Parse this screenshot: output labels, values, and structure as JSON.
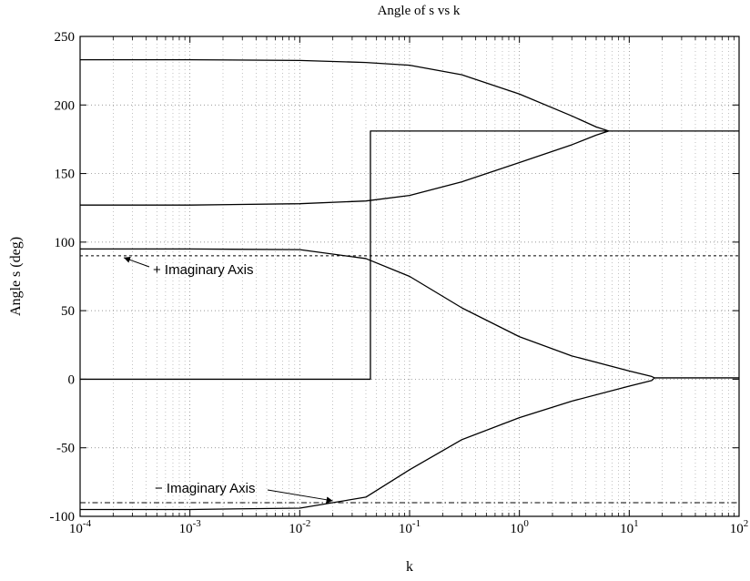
{
  "chart_data": {
    "type": "line",
    "title": "Angle of s vs k",
    "xlabel": "k",
    "ylabel": "Angle s (deg)",
    "xscale": "log",
    "xlim": [
      0.0001,
      100
    ],
    "ylim": [
      -100,
      250
    ],
    "grid": "on",
    "x_ticks": [
      {
        "base": "10",
        "exp": "-4",
        "value": 0.0001
      },
      {
        "base": "10",
        "exp": "-3",
        "value": 0.001
      },
      {
        "base": "10",
        "exp": "-2",
        "value": 0.01
      },
      {
        "base": "10",
        "exp": "-1",
        "value": 0.1
      },
      {
        "base": "10",
        "exp": "0",
        "value": 1
      },
      {
        "base": "10",
        "exp": "1",
        "value": 10
      },
      {
        "base": "10",
        "exp": "2",
        "value": 100
      }
    ],
    "y_ticks": [
      "-100",
      "-50",
      "0",
      "50",
      "100",
      "150",
      "200",
      "250"
    ],
    "series": [
      {
        "style": "solid",
        "x": [
          0.0001,
          0.001,
          0.01,
          0.04,
          0.1,
          0.3,
          1,
          3,
          5,
          6.5
        ],
        "y": [
          233,
          233,
          232.5,
          231,
          229,
          222,
          208,
          192,
          184,
          181
        ]
      },
      {
        "style": "solid",
        "x": [
          0.0001,
          0.001,
          0.01,
          0.04,
          0.1,
          0.3,
          1,
          3,
          5,
          6.5
        ],
        "y": [
          127,
          127,
          128,
          130,
          134,
          144,
          158,
          171,
          178,
          181
        ]
      },
      {
        "style": "solid",
        "x": [
          0.0001,
          0.044,
          0.044,
          6.5,
          100
        ],
        "y": [
          0,
          0,
          181,
          181,
          181
        ]
      },
      {
        "style": "solid",
        "x": [
          0.0001,
          0.001,
          0.01,
          0.04,
          0.1,
          0.3,
          1,
          3,
          10,
          16,
          17
        ],
        "y": [
          95,
          95,
          94.5,
          88,
          75,
          52,
          31,
          17,
          6,
          2,
          1
        ]
      },
      {
        "style": "solid",
        "x": [
          0.0001,
          0.001,
          0.01,
          0.04,
          0.1,
          0.3,
          1,
          3,
          10,
          16,
          17
        ],
        "y": [
          -95,
          -95,
          -94,
          -86,
          -66,
          -44,
          -28,
          -16,
          -5,
          -1,
          1
        ]
      },
      {
        "style": "solid",
        "x": [
          17,
          100
        ],
        "y": [
          1,
          1
        ]
      },
      {
        "style": "dashed",
        "name": "+ Imaginary Axis",
        "x": [
          0.0001,
          100
        ],
        "y": [
          90,
          90
        ]
      },
      {
        "style": "dashdot",
        "name": "− Imaginary Axis",
        "x": [
          0.0001,
          100
        ],
        "y": [
          -90,
          -90
        ]
      }
    ],
    "annotations": [
      {
        "text": "+ Imaginary Axis",
        "points_to": {
          "x": 0.00025,
          "y": 90
        }
      },
      {
        "text": "− Imaginary Axis",
        "points_to": {
          "x": 0.02,
          "y": -90
        }
      }
    ]
  }
}
